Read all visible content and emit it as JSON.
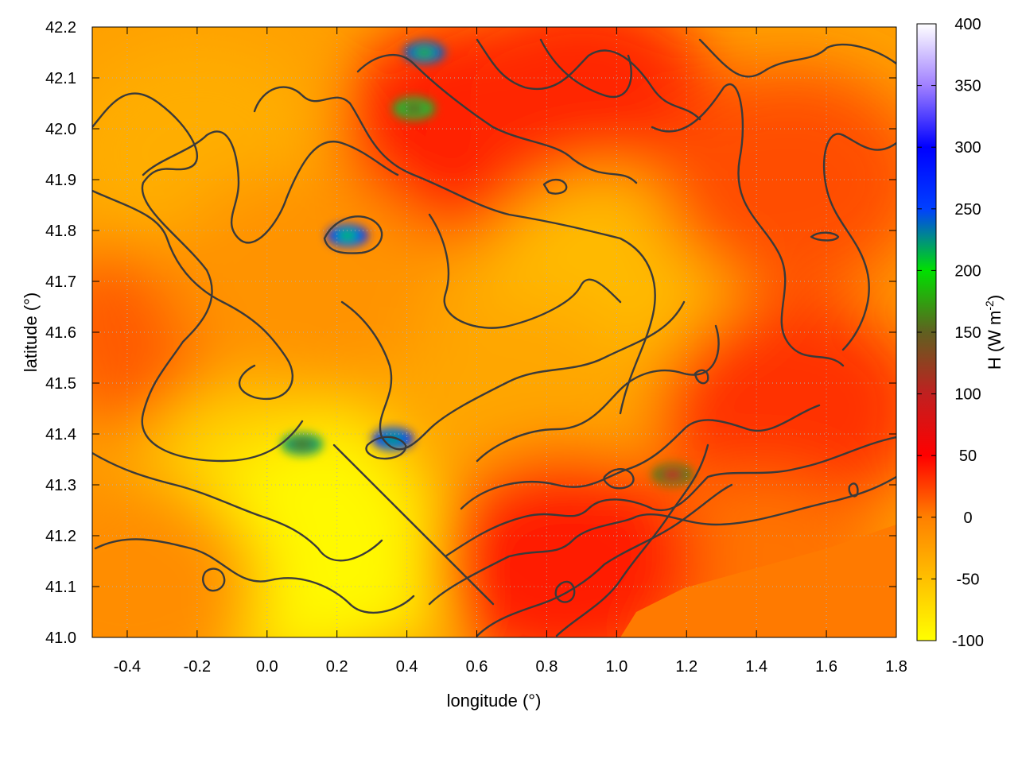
{
  "chart_data": {
    "type": "heatmap",
    "xlabel": "longitude (°)",
    "ylabel": "latitude (°)",
    "colorbar_label": "H (W m",
    "colorbar_label_sup": "-2",
    "colorbar_label_end": ")",
    "xlim": [
      -0.5,
      1.8
    ],
    "ylim": [
      41.0,
      42.2
    ],
    "x_ticks": [
      "-0.4",
      "-0.2",
      "0.0",
      "0.2",
      "0.4",
      "0.6",
      "0.8",
      "1.0",
      "1.2",
      "1.4",
      "1.6",
      "1.8"
    ],
    "x_tick_values": [
      -0.4,
      -0.2,
      0.0,
      0.2,
      0.4,
      0.6,
      0.8,
      1.0,
      1.2,
      1.4,
      1.6,
      1.8
    ],
    "y_ticks": [
      "41.0",
      "41.1",
      "41.2",
      "41.3",
      "41.4",
      "41.5",
      "41.6",
      "41.7",
      "41.8",
      "41.9",
      "42.0",
      "42.1",
      "42.2"
    ],
    "y_tick_values": [
      41.0,
      41.1,
      41.2,
      41.3,
      41.4,
      41.5,
      41.6,
      41.7,
      41.8,
      41.9,
      42.0,
      42.1,
      42.2
    ],
    "colorbar_range": [
      -100,
      400
    ],
    "colorbar_ticks": [
      "-100",
      "-50",
      "0",
      "50",
      "100",
      "150",
      "200",
      "250",
      "300",
      "350",
      "400"
    ],
    "colorbar_tick_values": [
      -100,
      -50,
      0,
      50,
      100,
      150,
      200,
      250,
      300,
      350,
      400
    ],
    "colormap": [
      {
        "value": -100,
        "color": "#ffff00"
      },
      {
        "value": -50,
        "color": "#ffc000"
      },
      {
        "value": 0,
        "color": "#ff8000"
      },
      {
        "value": 50,
        "color": "#ff0000"
      },
      {
        "value": 100,
        "color": "#c02020"
      },
      {
        "value": 150,
        "color": "#606020"
      },
      {
        "value": 200,
        "color": "#00e000"
      },
      {
        "value": 250,
        "color": "#0040ff"
      },
      {
        "value": 300,
        "color": "#0000ff"
      },
      {
        "value": 350,
        "color": "#a080ff"
      },
      {
        "value": 400,
        "color": "#ffffff"
      }
    ],
    "field_regions": [
      {
        "x": -0.25,
        "y": 41.6,
        "value": 15
      },
      {
        "x": -0.2,
        "y": 41.95,
        "value": -35
      },
      {
        "x": 0.0,
        "y": 41.3,
        "value": -60
      },
      {
        "x": 0.05,
        "y": 41.15,
        "value": -90
      },
      {
        "x": 0.25,
        "y": 41.2,
        "value": -95
      },
      {
        "x": 0.55,
        "y": 41.8,
        "value": -30
      },
      {
        "x": 0.6,
        "y": 42.0,
        "value": 40
      },
      {
        "x": 0.9,
        "y": 42.05,
        "value": 35
      },
      {
        "x": 1.0,
        "y": 41.7,
        "value": -45
      },
      {
        "x": 0.7,
        "y": 41.45,
        "value": -30
      },
      {
        "x": 1.5,
        "y": 41.45,
        "value": 30
      },
      {
        "x": 1.5,
        "y": 41.9,
        "value": 20
      },
      {
        "x": 1.4,
        "y": 41.1,
        "value": 5
      },
      {
        "x": -0.4,
        "y": 41.1,
        "value": -10
      },
      {
        "x": 0.85,
        "y": 41.15,
        "value": 40
      },
      {
        "x": 0.1,
        "y": 41.7,
        "value": -15
      }
    ],
    "hotspots": [
      {
        "x": 0.23,
        "y": 41.79,
        "value": 270
      },
      {
        "x": 0.45,
        "y": 42.15,
        "value": 240
      },
      {
        "x": 0.42,
        "y": 42.04,
        "value": 210
      },
      {
        "x": 0.1,
        "y": 41.38,
        "value": 220
      },
      {
        "x": 0.36,
        "y": 41.39,
        "value": 280
      },
      {
        "x": 1.16,
        "y": 41.32,
        "value": 160
      }
    ]
  }
}
